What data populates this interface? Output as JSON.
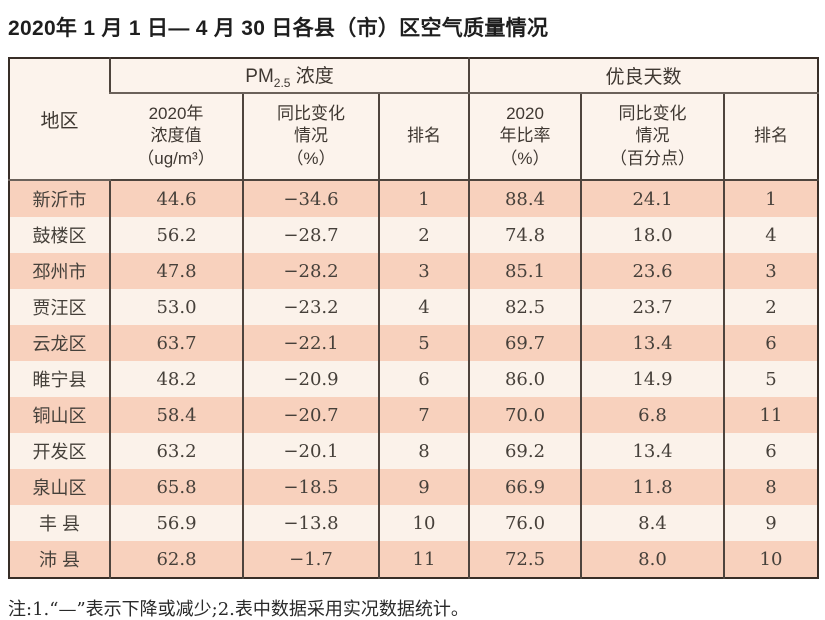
{
  "title": "2020年 1 月 1 日— 4 月 30 日各县（市）区空气质量情况",
  "header": {
    "region": "地区",
    "pm_group_prefix": "PM",
    "pm_group_sub": "2.5",
    "pm_group_suffix": " 浓度",
    "good_group": "优良天数",
    "pm_value": "2020年\n浓度值\n（ug/m³）",
    "pm_change": "同比变化\n情况\n（%）",
    "pm_rank": "排名",
    "rate": "2020\n年比率\n（%）",
    "rate_change": "同比变化\n情况\n（百分点）",
    "rate_rank": "排名",
    "columns": [
      "地区",
      "2020年浓度值（ug/m³）",
      "同比变化情况（%）",
      "排名",
      "2020年比率（%）",
      "同比变化情况（百分点）",
      "排名"
    ]
  },
  "chart_data": {
    "type": "table",
    "title": "2020年1月1日—4月30日各县（市）区空气质量情况",
    "column_groups": [
      "PM2.5浓度",
      "优良天数"
    ],
    "columns": [
      "地区",
      "2020年浓度值（ug/m³）",
      "同比变化情况（%）",
      "排名",
      "2020年比率（%）",
      "同比变化情况（百分点）",
      "排名"
    ],
    "rows": [
      [
        "新沂市",
        "44.6",
        "−34.6",
        "1",
        "88.4",
        "24.1",
        "1"
      ],
      [
        "鼓楼区",
        "56.2",
        "−28.7",
        "2",
        "74.8",
        "18.0",
        "4"
      ],
      [
        "邳州市",
        "47.8",
        "−28.2",
        "3",
        "85.1",
        "23.6",
        "3"
      ],
      [
        "贾汪区",
        "53.0",
        "−23.2",
        "4",
        "82.5",
        "23.7",
        "2"
      ],
      [
        "云龙区",
        "63.7",
        "−22.1",
        "5",
        "69.7",
        "13.4",
        "6"
      ],
      [
        "睢宁县",
        "48.2",
        "−20.9",
        "6",
        "86.0",
        "14.9",
        "5"
      ],
      [
        "铜山区",
        "58.4",
        "−20.7",
        "7",
        "70.0",
        "6.8",
        "11"
      ],
      [
        "开发区",
        "63.2",
        "−20.1",
        "8",
        "69.2",
        "13.4",
        "6"
      ],
      [
        "泉山区",
        "65.8",
        "−18.5",
        "9",
        "66.9",
        "11.8",
        "8"
      ],
      [
        "丰 县",
        "56.9",
        "−13.8",
        "10",
        "76.0",
        "8.4",
        "9"
      ],
      [
        "沛 县",
        "62.8",
        "−1.7",
        "11",
        "72.5",
        "8.0",
        "10"
      ]
    ]
  },
  "note": "注:1.“—”表示下降或减少;2.表中数据采用实况数据统计。",
  "colors": {
    "row_odd": "#f8d1bd",
    "row_even": "#fbf2ea",
    "header_bg": "#fcf3ec",
    "border_outer": "#382e27",
    "border_inner": "#4e443d"
  }
}
